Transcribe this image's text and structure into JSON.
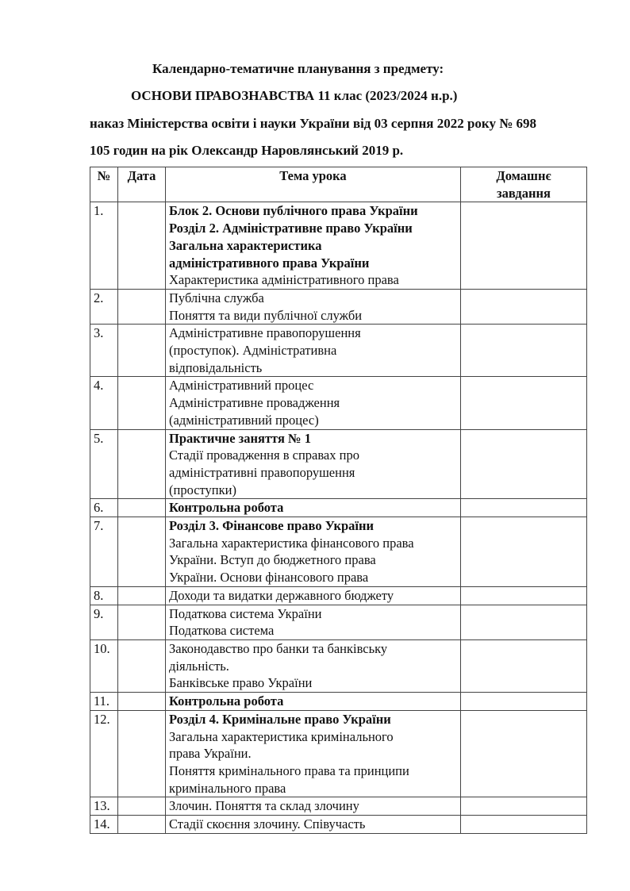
{
  "header": {
    "line1": "Календарно-тематичне планування з предмету:",
    "line2": "ОСНОВИ ПРАВОЗНАВСТВА 11 клас (2023/2024 н.р.)",
    "line3": "наказ Міністерства освіти і науки України від 03 серпня 2022 року № 698",
    "line4": "105 годин на рік Олександр Наровлянський 2019 р."
  },
  "table": {
    "columns": [
      "№",
      "Дата",
      "Тема урока",
      "Домашнє завдання"
    ],
    "rows": [
      {
        "num": "1.",
        "date": "",
        "homework": "",
        "lines": [
          {
            "text": "Блок 2. Основи публічного права України",
            "bold": true
          },
          {
            "text": "Розділ 2. Адміністративне право України",
            "bold": true
          },
          {
            "text": "Загальна характеристика",
            "bold": true
          },
          {
            "text": "адміністративного права України",
            "bold": true
          },
          {
            "text": "Характеристика адміністративного права",
            "bold": false
          }
        ]
      },
      {
        "num": "2.",
        "date": "",
        "homework": "",
        "lines": [
          {
            "text": "Публічна служба",
            "bold": false
          },
          {
            "text": "Поняття та види публічної служби",
            "bold": false
          }
        ]
      },
      {
        "num": "3.",
        "date": "",
        "homework": "",
        "lines": [
          {
            "text": "Адміністративне правопорушення",
            "bold": false
          },
          {
            "text": "(проступок). Адміністративна",
            "bold": false
          },
          {
            "text": "відповідальність",
            "bold": false
          }
        ]
      },
      {
        "num": "4.",
        "date": "",
        "homework": "",
        "lines": [
          {
            "text": "Адміністративний процес",
            "bold": false
          },
          {
            "text": "Адміністративне провадження",
            "bold": false
          },
          {
            "text": "(адміністративний процес)",
            "bold": false
          }
        ]
      },
      {
        "num": "5.",
        "date": "",
        "homework": "",
        "lines": [
          {
            "text": "Практичне заняття № 1",
            "bold": true
          },
          {
            "text": "Стадії провадження в справах про",
            "bold": false
          },
          {
            "text": "адміністративні правопорушення",
            "bold": false
          },
          {
            "text": "(проступки)",
            "bold": false
          }
        ]
      },
      {
        "num": "6.",
        "date": "",
        "homework": "",
        "lines": [
          {
            "text": "Контрольна робота",
            "bold": true
          }
        ]
      },
      {
        "num": "7.",
        "date": "",
        "homework": "",
        "lines": [
          {
            "text": "Розділ 3. Фінансове право України",
            "bold": true
          },
          {
            "text": "Загальна характеристика фінансового права",
            "bold": false
          },
          {
            "text": "України. Вступ до бюджетного права",
            "bold": false
          },
          {
            "text": "України. Основи фінансового права",
            "bold": false
          }
        ]
      },
      {
        "num": "8.",
        "date": "",
        "homework": "",
        "lines": [
          {
            "text": "Доходи та видатки державного бюджету",
            "bold": false
          }
        ]
      },
      {
        "num": "9.",
        "date": "",
        "homework": "",
        "lines": [
          {
            "text": "Податкова система України",
            "bold": false
          },
          {
            "text": "Податкова система",
            "bold": false
          }
        ]
      },
      {
        "num": "10.",
        "date": "",
        "homework": "",
        "lines": [
          {
            "text": "Законодавство про банки та банківську",
            "bold": false
          },
          {
            "text": "діяльність.",
            "bold": false
          },
          {
            "text": "Банківське право України",
            "bold": false
          }
        ]
      },
      {
        "num": "11.",
        "date": "",
        "homework": "",
        "lines": [
          {
            "text": "Контрольна робота",
            "bold": true
          }
        ]
      },
      {
        "num": "12.",
        "date": "",
        "homework": "",
        "lines": [
          {
            "text": "Розділ 4. Кримінальне право України",
            "bold": true
          },
          {
            "text": "Загальна характеристика кримінального",
            "bold": false
          },
          {
            "text": "права України.",
            "bold": false
          },
          {
            "text": "Поняття кримінального права та принципи",
            "bold": false
          },
          {
            "text": "кримінального права",
            "bold": false
          }
        ]
      },
      {
        "num": "13.",
        "date": "",
        "homework": "",
        "lines": [
          {
            "text": "Злочин. Поняття та склад злочину",
            "bold": false
          }
        ]
      },
      {
        "num": "14.",
        "date": "",
        "homework": "",
        "lines": [
          {
            "text": "Стадії скоєння злочину. Співучасть",
            "bold": false
          }
        ]
      }
    ]
  }
}
